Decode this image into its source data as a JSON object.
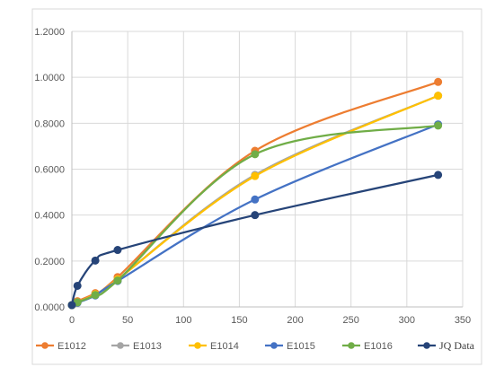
{
  "chart_data": {
    "type": "line",
    "smooth": true,
    "title": "",
    "xlabel": "",
    "ylabel": "",
    "xlim": [
      0,
      350
    ],
    "ylim": [
      0,
      1.2
    ],
    "x_ticks": [
      0,
      50,
      100,
      150,
      200,
      250,
      300,
      350
    ],
    "x_tick_labels": [
      "0",
      "50",
      "100",
      "150",
      "200",
      "250",
      "300",
      "350"
    ],
    "y_ticks": [
      0,
      0.2,
      0.4,
      0.6,
      0.8,
      1.0,
      1.2
    ],
    "y_tick_labels": [
      "0.0000",
      "0.2000",
      "0.4000",
      "0.6000",
      "0.8000",
      "1.0000",
      "1.2000"
    ],
    "grid": true,
    "legend_position": "bottom",
    "series": [
      {
        "name": "E1012",
        "color": "#ED7D31",
        "x": [
          0,
          5,
          21,
          41,
          164,
          328
        ],
        "y": [
          0.008,
          0.025,
          0.06,
          0.13,
          0.68,
          0.98
        ]
      },
      {
        "name": "E1013",
        "color": "#A5A5A5",
        "x": [
          0,
          5,
          21,
          41,
          164,
          328
        ],
        "y": [
          0.008,
          0.02,
          0.055,
          0.12,
          0.575,
          0.92
        ]
      },
      {
        "name": "E1014",
        "color": "#FFC000",
        "x": [
          0,
          5,
          21,
          41,
          164,
          328
        ],
        "y": [
          0.008,
          0.02,
          0.055,
          0.12,
          0.57,
          0.92
        ]
      },
      {
        "name": "E1015",
        "color": "#4472C4",
        "x": [
          0,
          5,
          21,
          41,
          164,
          328
        ],
        "y": [
          0.008,
          0.018,
          0.05,
          0.113,
          0.468,
          0.795
        ]
      },
      {
        "name": "E1016",
        "color": "#70AD47",
        "x": [
          0,
          5,
          21,
          41,
          164,
          328
        ],
        "y": [
          0.008,
          0.02,
          0.052,
          0.115,
          0.665,
          0.79
        ]
      },
      {
        "name": "JQ Data",
        "color": "#264478",
        "x": [
          0,
          5,
          21,
          41,
          164,
          328
        ],
        "y": [
          0.008,
          0.092,
          0.202,
          0.248,
          0.4,
          0.575
        ]
      }
    ]
  }
}
